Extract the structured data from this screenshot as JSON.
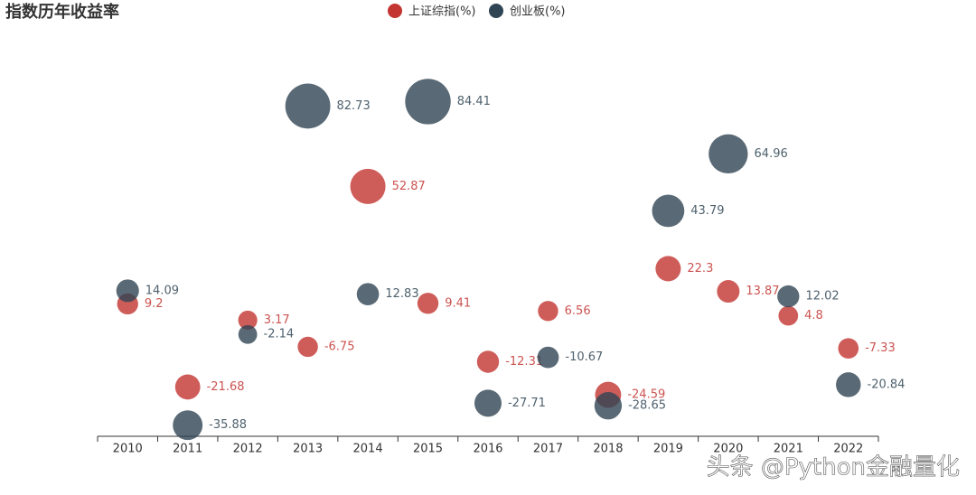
{
  "chart_data": {
    "type": "bubble",
    "title": "指数历年收益率",
    "categories": [
      "2010",
      "2011",
      "2012",
      "2013",
      "2014",
      "2015",
      "2016",
      "2017",
      "2018",
      "2019",
      "2020",
      "2021",
      "2022"
    ],
    "series": [
      {
        "name": "上证综指(%)",
        "color": "#c23531",
        "values": [
          9.2,
          -21.68,
          3.17,
          -6.75,
          52.87,
          9.41,
          -12.31,
          6.56,
          -24.59,
          22.3,
          13.87,
          4.8,
          -7.33
        ]
      },
      {
        "name": "创业板(%)",
        "color": "#2f4554",
        "values": [
          14.09,
          -35.88,
          -2.14,
          82.73,
          12.83,
          84.41,
          -27.71,
          -10.67,
          -28.65,
          43.79,
          64.96,
          12.02,
          -20.84
        ]
      }
    ],
    "ylim": [
      -40,
      100
    ],
    "legend": "top",
    "watermark": "头条 @Python金融量化"
  }
}
